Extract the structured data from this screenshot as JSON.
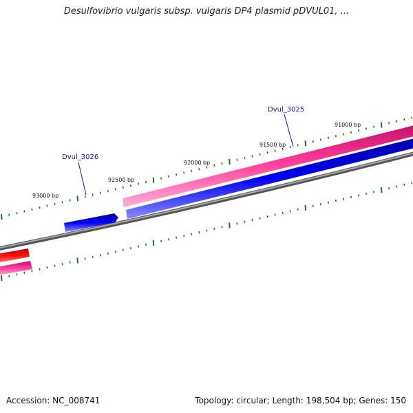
{
  "title": "Desulfovibrio vulgaris subsp. vulgaris DP4 plasmid pDVUL01, ...",
  "footer": {
    "accession": "Accession: NC_008741",
    "summary": "Topology: circular; Length: 198,504 bp; Genes: 150"
  },
  "scale_labels": [
    "93000 bp",
    "92500 bp",
    "92000 bp",
    "91500 bp",
    "91000 bp"
  ],
  "gene_labels": [
    "Dvul_3026",
    "Dvul_3025"
  ],
  "colors": {
    "backbone": "#7a7a7a",
    "forward_feature": "#ff2f8f",
    "reverse_feature": "#0000ee",
    "other_feature": "#ff0000",
    "tick": "#1a7a1a",
    "gene_label": "#1010c0"
  }
}
